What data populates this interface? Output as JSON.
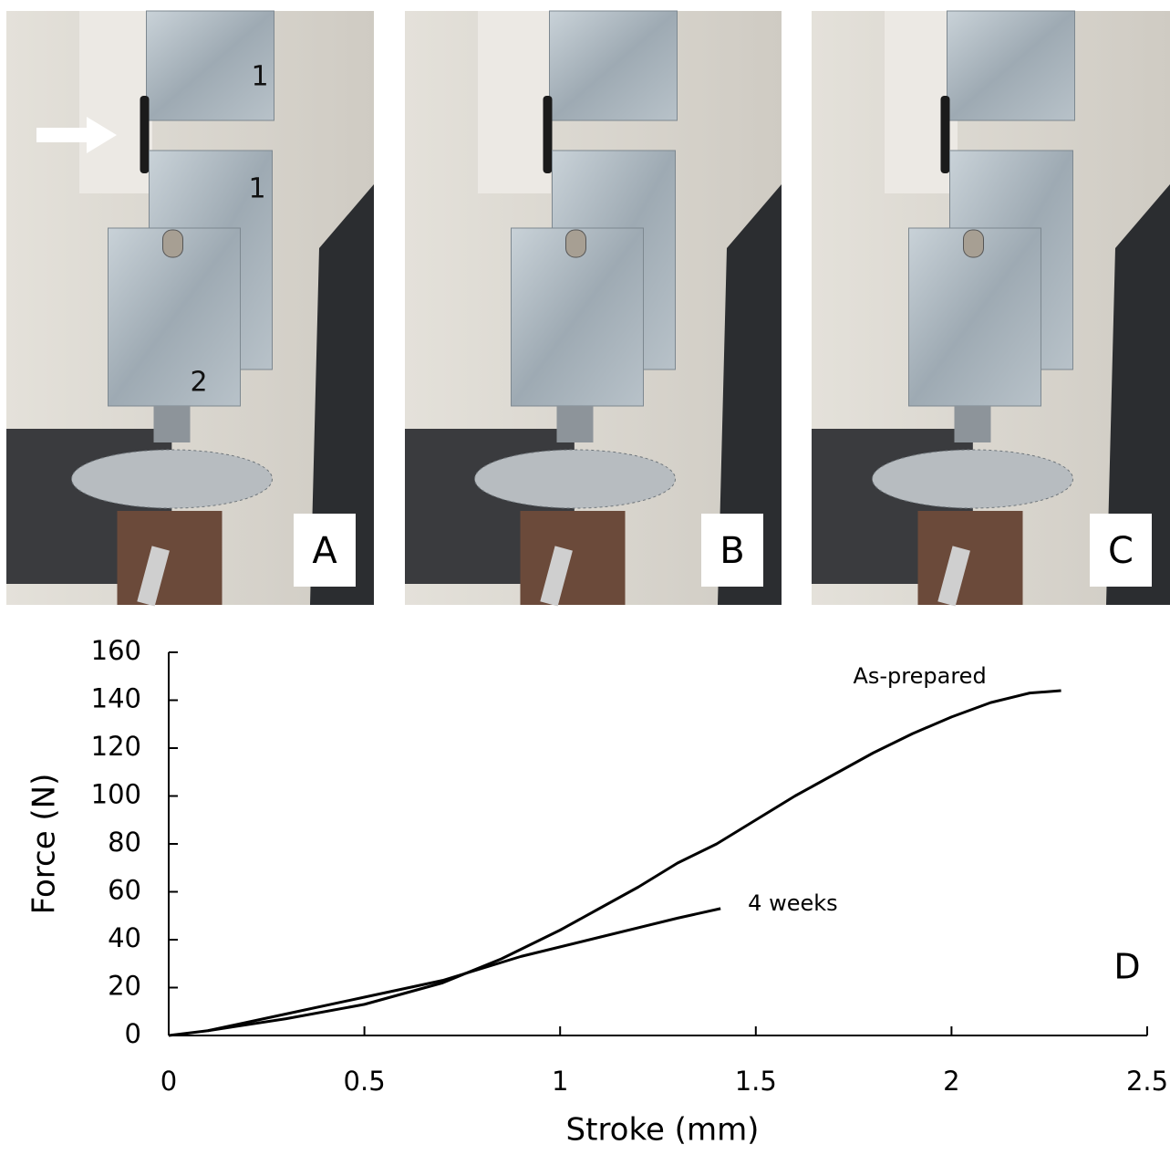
{
  "panels": [
    {
      "label": "A",
      "annotations": [
        "1",
        "1",
        "2"
      ]
    },
    {
      "label": "B"
    },
    {
      "label": "C"
    }
  ],
  "chart_data": {
    "type": "line",
    "xlabel": "Stroke (mm)",
    "ylabel": "Force (N)",
    "series": [
      {
        "name": "As-prepared",
        "color": "#000000",
        "x": [
          0,
          0.1,
          0.3,
          0.5,
          0.7,
          0.85,
          1.0,
          1.1,
          1.2,
          1.3,
          1.4,
          1.5,
          1.6,
          1.7,
          1.8,
          1.9,
          2.0,
          2.1,
          2.2,
          2.28
        ],
        "values": [
          0,
          2,
          7,
          13,
          22,
          32,
          44,
          53,
          62,
          72,
          80,
          90,
          100,
          109,
          118,
          126,
          133,
          139,
          143,
          144
        ]
      },
      {
        "name": "4 weeks",
        "color": "#000000",
        "x": [
          0.1,
          0.3,
          0.5,
          0.7,
          0.9,
          1.1,
          1.3,
          1.41
        ],
        "values": [
          2,
          9,
          16,
          23,
          33,
          41,
          49,
          53
        ]
      }
    ],
    "annotations": [
      "D"
    ],
    "xlim": [
      0,
      2.5
    ],
    "xticks": [
      0,
      0.5,
      1,
      1.5,
      2,
      2.5
    ],
    "ylim": [
      0,
      160
    ],
    "yticks": [
      0,
      20,
      40,
      60,
      80,
      100,
      120,
      140,
      160
    ]
  }
}
